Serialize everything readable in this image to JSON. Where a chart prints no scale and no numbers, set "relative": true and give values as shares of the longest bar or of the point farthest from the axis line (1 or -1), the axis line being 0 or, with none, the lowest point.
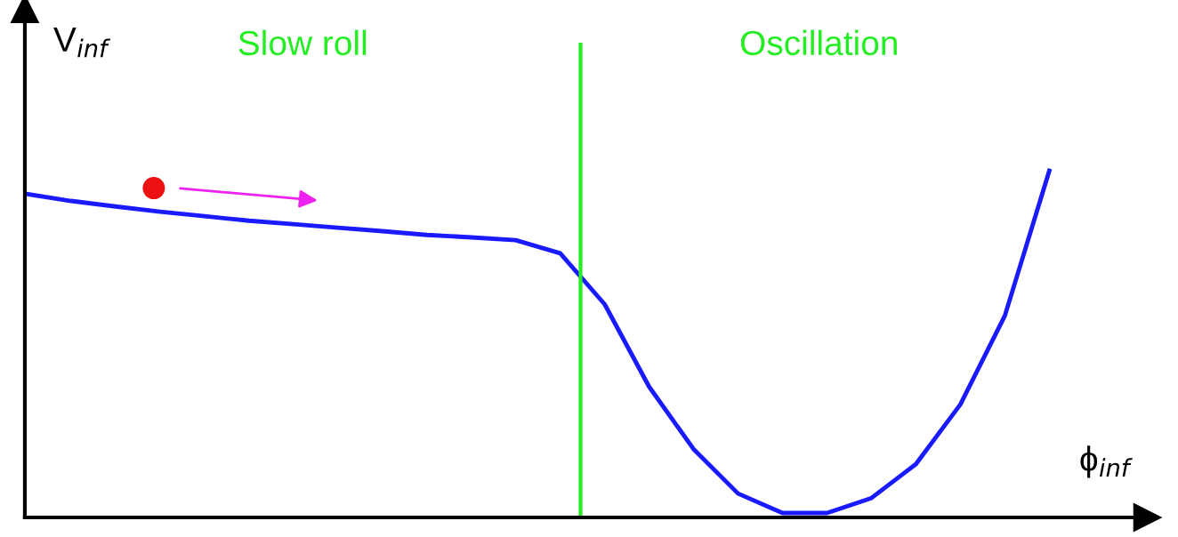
{
  "chart_data": {
    "type": "line",
    "relative": true,
    "xlabel": "ϕ$_{inf}$",
    "ylabel": "V$_{inf}$",
    "categories": [
      null,
      null,
      null,
      null,
      null,
      null,
      null,
      null,
      null,
      null,
      null,
      null,
      null,
      null,
      null,
      null,
      null,
      null,
      null,
      null,
      null,
      null,
      null,
      null
    ],
    "series": [
      {
        "color": "#1a1aff",
        "values": [
          0.933,
          0.913,
          0.897,
          0.882,
          0.869,
          0.856,
          0.846,
          0.836,
          0.826,
          0.815,
          0.808,
          0.8,
          0.762,
          0.615,
          0.377,
          0.197,
          0.069,
          0.013,
          0.013,
          0.056,
          0.154,
          0.326,
          0.582,
          1.0
        ]
      }
    ],
    "annotations": [
      "Slow roll",
      "Oscillation"
    ],
    "marker": "none",
    "line_style": "solid"
  }
}
